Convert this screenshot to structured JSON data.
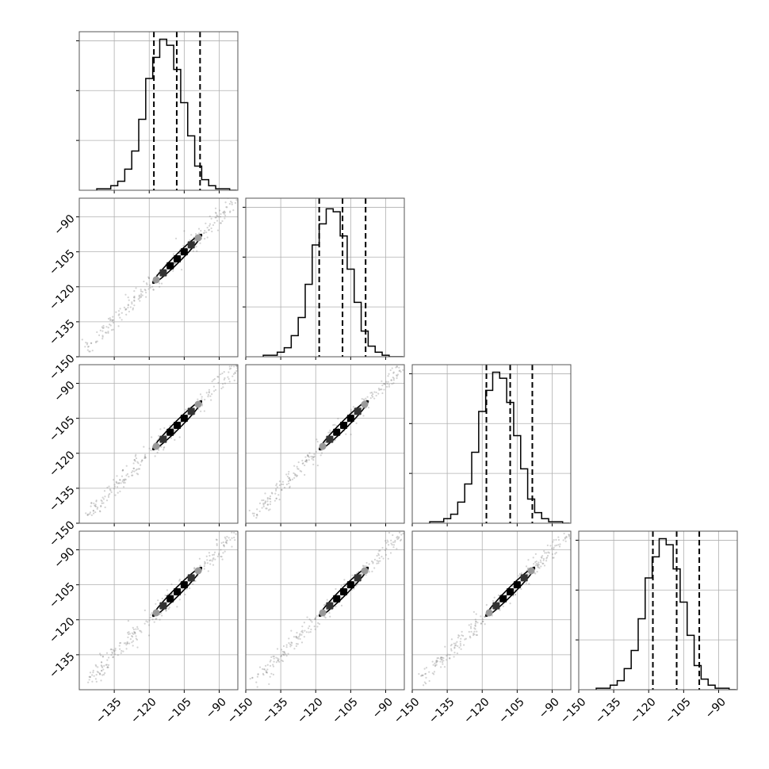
{
  "chart_data": {
    "type": "corner",
    "n_params": 4,
    "mean": -108,
    "sigma": 9.5,
    "correlation": 0.995,
    "quantiles": [
      0.16,
      0.5,
      0.84
    ],
    "grid": true,
    "axis_range": [
      -150,
      -82
    ],
    "histogram_ylim": [
      0,
      1.05
    ],
    "x_ticks_first_column": [
      -135,
      -120,
      -105,
      -90
    ],
    "x_ticks_other_columns": [
      -150,
      -135,
      -120,
      -105,
      -90
    ],
    "y_ticks_rows_2_3": [
      -150,
      -135,
      -120,
      -105,
      -90
    ],
    "y_ticks_row_4": [
      -135,
      -120,
      -105,
      -90
    ],
    "x_tick_labels_first_column": [
      "−135",
      "−120",
      "−105",
      "−90"
    ],
    "x_tick_labels_other_columns": [
      "−150",
      "−135",
      "−120",
      "−105",
      "−90"
    ],
    "y_tick_labels_rows_2_3": [
      "−150",
      "−135",
      "−120",
      "−105",
      "−90"
    ],
    "y_tick_labels_row_4": [
      "−135",
      "−120",
      "−105",
      "−90"
    ],
    "histograms": [
      {
        "param": 1,
        "bin_centers": [
          -141,
          -138,
          -135,
          -132,
          -129,
          -126,
          -123,
          -120,
          -117,
          -114,
          -111,
          -108,
          -105,
          -102,
          -99,
          -96,
          -93,
          -90,
          -87,
          -84
        ],
        "counts": [
          0.01,
          0.01,
          0.03,
          0.06,
          0.14,
          0.26,
          0.47,
          0.74,
          0.88,
          1.0,
          0.96,
          0.8,
          0.58,
          0.36,
          0.16,
          0.07,
          0.03,
          0.01,
          0.01,
          0.0
        ]
      },
      {
        "param": 2,
        "bin_centers": [
          -141,
          -138,
          -135,
          -132,
          -129,
          -126,
          -123,
          -120,
          -117,
          -114,
          -111,
          -108,
          -105,
          -102,
          -99,
          -96,
          -93,
          -90,
          -87,
          -84
        ],
        "counts": [
          0.01,
          0.01,
          0.03,
          0.06,
          0.14,
          0.26,
          0.48,
          0.74,
          0.88,
          0.98,
          0.96,
          0.8,
          0.58,
          0.36,
          0.17,
          0.07,
          0.03,
          0.01,
          0.0,
          0.0
        ]
      },
      {
        "param": 3,
        "bin_centers": [
          -141,
          -138,
          -135,
          -132,
          -129,
          -126,
          -123,
          -120,
          -117,
          -114,
          -111,
          -108,
          -105,
          -102,
          -99,
          -96,
          -93,
          -90,
          -87,
          -84
        ],
        "counts": [
          0.01,
          0.01,
          0.03,
          0.06,
          0.14,
          0.26,
          0.47,
          0.74,
          0.88,
          1.0,
          0.96,
          0.8,
          0.58,
          0.36,
          0.16,
          0.07,
          0.03,
          0.01,
          0.01,
          0.0
        ]
      },
      {
        "param": 4,
        "bin_centers": [
          -141,
          -138,
          -135,
          -132,
          -129,
          -126,
          -123,
          -120,
          -117,
          -114,
          -111,
          -108,
          -105,
          -102,
          -99,
          -96,
          -93,
          -90,
          -87,
          -84
        ],
        "counts": [
          0.01,
          0.01,
          0.03,
          0.06,
          0.14,
          0.26,
          0.47,
          0.74,
          0.88,
          1.0,
          0.96,
          0.8,
          0.58,
          0.36,
          0.16,
          0.07,
          0.03,
          0.01,
          0.01,
          0.0
        ]
      }
    ],
    "quantile_values": [
      {
        "param": 1,
        "q16": -118.0,
        "q50": -108.2,
        "q84": -98.2
      },
      {
        "param": 2,
        "q16": -118.5,
        "q50": -108.5,
        "q84": -98.6
      },
      {
        "param": 3,
        "q16": -118.2,
        "q50": -108.0,
        "q84": -98.5
      },
      {
        "param": 4,
        "q16": -118.2,
        "q50": -108.0,
        "q84": -98.3
      }
    ],
    "scatter_extent": {
      "min": -147,
      "max": -82
    },
    "colors": {
      "data": "#000000",
      "grid": "#b0b0b0",
      "frame": "#555555",
      "points": "#808080"
    }
  }
}
